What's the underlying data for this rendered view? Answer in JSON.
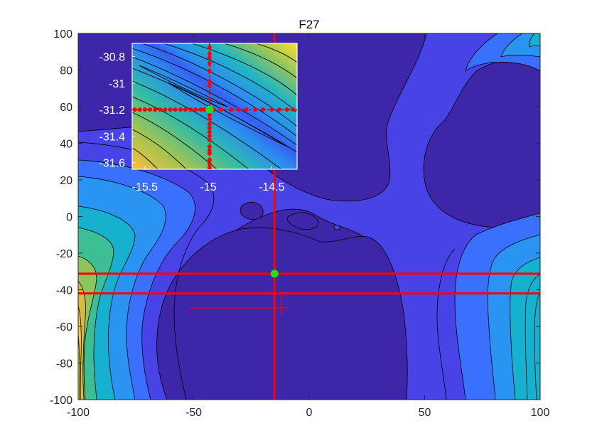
{
  "chart_data": {
    "type": "contour",
    "title": "F27",
    "xlabel": "",
    "ylabel": "",
    "xlim": [
      -100,
      100
    ],
    "ylim": [
      -100,
      100
    ],
    "x_ticks": [
      -100,
      -50,
      0,
      50,
      100
    ],
    "y_ticks": [
      100,
      80,
      60,
      40,
      20,
      0,
      -20,
      -40,
      -60,
      -80,
      -100
    ],
    "colormap": [
      "#3e26a8",
      "#4743e6",
      "#3a70fe",
      "#2a94f2",
      "#17b1d0",
      "#3dbf96",
      "#8cc45f",
      "#d6bb3c",
      "#f9c639",
      "#f9fb15"
    ],
    "best_point": {
      "x": -15,
      "y": -31.2,
      "color": "#22dd22"
    },
    "search_lines": {
      "vertical_x": -15,
      "horizontal_y": [
        -31.2,
        -42
      ],
      "color": "#ff0000"
    },
    "minor_search_cross": {
      "x_range": [
        -52,
        -9
      ],
      "y": -50,
      "v_x": -12,
      "v_range": [
        -43,
        -54
      ]
    },
    "inset": {
      "xlim": [
        -15.6,
        -14.3
      ],
      "ylim": [
        -31.65,
        -30.7
      ],
      "x_ticks": [
        -15.5,
        -15,
        -14.5
      ],
      "y_ticks": [
        -30.8,
        -31,
        -31.2,
        -31.4,
        -31.6
      ],
      "best_point": {
        "x": -14.99,
        "y": -31.2
      },
      "horizontal_samples_x": [
        -15.58,
        -15.54,
        -15.5,
        -15.46,
        -15.42,
        -15.38,
        -15.34,
        -15.3,
        -15.26,
        -15.22,
        -15.18,
        -15.14,
        -15.1,
        -15.06,
        -15.03,
        -14.96,
        -14.9,
        -14.82,
        -14.76,
        -14.7,
        -14.63,
        -14.57,
        -14.5,
        -14.44,
        -14.38,
        -14.33
      ],
      "vertical_samples_y": [
        -30.73,
        -30.78,
        -30.81,
        -30.85,
        -30.91,
        -30.99,
        -31.02,
        -31.24,
        -31.27,
        -31.31,
        -31.34,
        -31.37,
        -31.4,
        -31.43,
        -31.48,
        -31.51,
        -31.53,
        -31.58,
        -31.61,
        -31.64
      ]
    }
  }
}
